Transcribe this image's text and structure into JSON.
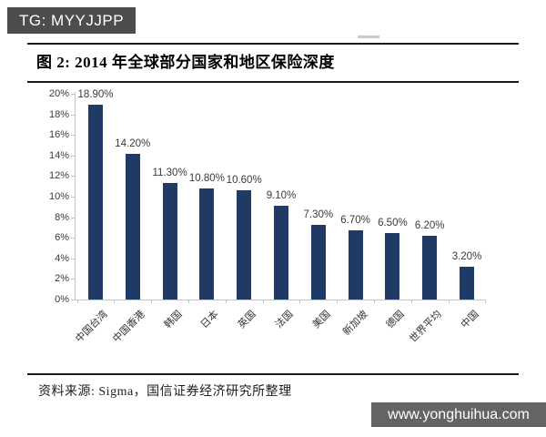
{
  "banner": {
    "text": "TG: MYYJJPP",
    "bg": "#4d4d4d",
    "fg": "#ffffff"
  },
  "figure": {
    "title": "图 2: 2014 年全球部分国家和地区保险深度"
  },
  "chart_data": {
    "type": "bar",
    "title": "2014 年全球部分国家和地区保险深度",
    "categories": [
      "中国台湾",
      "中国香港",
      "韩国",
      "日本",
      "英国",
      "法国",
      "美国",
      "新加坡",
      "德国",
      "世界平均",
      "中国"
    ],
    "values": [
      18.9,
      14.2,
      11.3,
      10.8,
      10.6,
      9.1,
      7.3,
      6.7,
      6.5,
      6.2,
      3.2
    ],
    "data_labels": [
      "18.90%",
      "14.20%",
      "11.30%",
      "10.80%",
      "10.60%",
      "9.10%",
      "7.30%",
      "6.70%",
      "6.50%",
      "6.20%",
      "3.20%"
    ],
    "xlabel": "",
    "ylabel": "",
    "ylim": [
      0,
      20
    ],
    "ytick_step": 2,
    "ytick_labels": [
      "0%",
      "2%",
      "4%",
      "6%",
      "8%",
      "10%",
      "12%",
      "14%",
      "16%",
      "18%",
      "20%"
    ],
    "grid": false,
    "legend": "none",
    "bar_color": "#1f3a64",
    "axis_color": "#c4c4c4"
  },
  "footer": {
    "source_note": "资料来源: Sigma，国信证券经济研究所整理"
  },
  "watermark": {
    "text": "www.yonghuihua.com",
    "bg": "#646464",
    "fg": "#ffffff"
  }
}
